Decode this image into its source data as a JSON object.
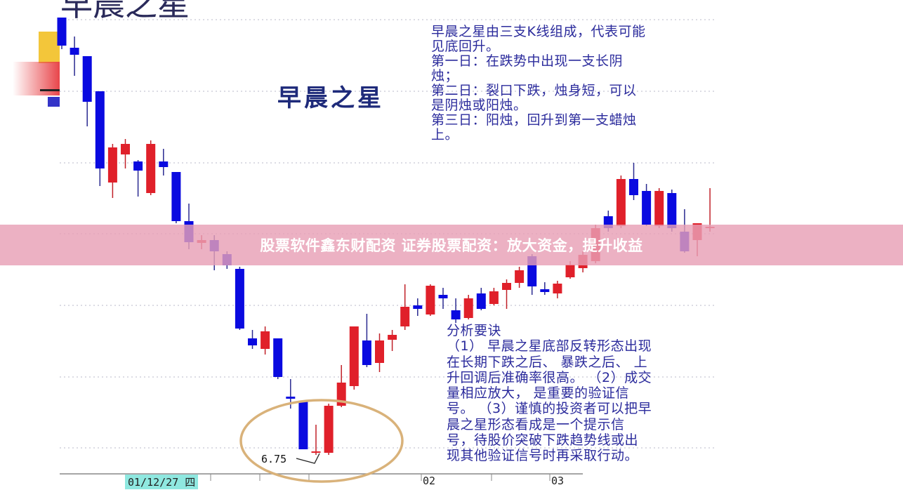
{
  "title": "早晨之星",
  "pattern_label": "早晨之星",
  "banner": "股票软件鑫东财配资 证券股票配资：放大资金，提升收益",
  "description_lines": [
    "早晨之星由三支K线组成，代表可能",
    "见底回升。",
    "第一日：在跌势中出现一支长阴",
    "烛；",
    "第二日：裂口下跌，烛身短，可以",
    "是阴烛或阳烛。",
    "第三日：阳烛，回升到第一支蜡烛",
    "上。"
  ],
  "analysis_lines": [
    "分析要诀",
    "（1） 早晨之星底部反转形态出现",
    "在长期下跌之后、 暴跌之后、 上",
    "升回调后准确率很高。 （2）成交",
    "量相应放大， 是重要的验证信",
    "号。 （3）谨慎的投资者可以把早",
    "晨之星形态看成是一个提示信",
    "号，待股价突破下跌趋势线或出",
    "现其他验证信号时再采取行动。"
  ],
  "colors": {
    "up": "#e0202a",
    "down": "#0a0ae0",
    "text": "#2b2b9c",
    "highlight_circle": "#d9b27a",
    "banner": "#e8a0b6",
    "date_highlight": "#8fe8e0"
  },
  "chart_data": {
    "type": "candlestick",
    "low_annotation": "6.75",
    "x_tick_labels": [
      "01/12/27 四",
      "02",
      "03"
    ],
    "grid": true,
    "candles": [
      {
        "o": 12.98,
        "c": 12.58,
        "h": 12.98,
        "l": 12.53
      },
      {
        "o": 12.55,
        "c": 12.45,
        "h": 12.71,
        "l": 12.15
      },
      {
        "o": 12.43,
        "c": 11.78,
        "h": 12.43,
        "l": 11.43
      },
      {
        "o": 11.93,
        "c": 10.83,
        "h": 11.93,
        "l": 10.58
      },
      {
        "o": 10.63,
        "c": 11.13,
        "h": 11.18,
        "l": 10.41
      },
      {
        "o": 11.03,
        "c": 11.18,
        "h": 11.25,
        "l": 10.83
      },
      {
        "o": 10.93,
        "c": 10.8,
        "h": 10.95,
        "l": 10.43
      },
      {
        "o": 10.48,
        "c": 11.18,
        "h": 11.23,
        "l": 10.45
      },
      {
        "o": 10.93,
        "c": 10.85,
        "h": 11.11,
        "l": 10.73
      },
      {
        "o": 10.78,
        "c": 10.08,
        "h": 10.78,
        "l": 10.05
      },
      {
        "o": 10.08,
        "c": 9.78,
        "h": 10.33,
        "l": 9.68
      },
      {
        "o": 9.77,
        "c": 9.81,
        "h": 9.88,
        "l": 9.68
      },
      {
        "o": 9.81,
        "c": 9.65,
        "h": 9.88,
        "l": 9.38
      },
      {
        "o": 9.61,
        "c": 9.45,
        "h": 9.65,
        "l": 9.4
      },
      {
        "o": 9.4,
        "c": 8.55,
        "h": 9.43,
        "l": 8.53
      },
      {
        "o": 8.41,
        "c": 8.31,
        "h": 8.53,
        "l": 8.26
      },
      {
        "o": 8.26,
        "c": 8.51,
        "h": 8.58,
        "l": 8.18
      },
      {
        "o": 8.41,
        "c": 7.86,
        "h": 8.41,
        "l": 7.83
      },
      {
        "o": 7.58,
        "c": 7.55,
        "h": 7.83,
        "l": 7.41
      },
      {
        "o": 7.51,
        "c": 6.83,
        "h": 7.53,
        "l": 6.83
      },
      {
        "o": 6.78,
        "c": 6.8,
        "h": 7.18,
        "l": 6.75
      },
      {
        "o": 6.78,
        "c": 7.45,
        "h": 7.48,
        "l": 6.75
      },
      {
        "o": 7.45,
        "c": 7.78,
        "h": 8.03,
        "l": 7.43
      },
      {
        "o": 7.73,
        "c": 8.58,
        "h": 8.58,
        "l": 7.68
      },
      {
        "o": 8.38,
        "c": 8.03,
        "h": 8.76,
        "l": 8.0
      },
      {
        "o": 8.06,
        "c": 8.38,
        "h": 8.48,
        "l": 7.93
      },
      {
        "o": 8.39,
        "c": 8.46,
        "h": 8.53,
        "l": 8.23
      },
      {
        "o": 8.58,
        "c": 8.86,
        "h": 9.18,
        "l": 8.53
      },
      {
        "o": 8.88,
        "c": 8.83,
        "h": 8.98,
        "l": 8.73
      },
      {
        "o": 8.75,
        "c": 9.16,
        "h": 9.18,
        "l": 8.73
      },
      {
        "o": 9.03,
        "c": 8.98,
        "h": 9.13,
        "l": 8.83
      },
      {
        "o": 8.81,
        "c": 8.68,
        "h": 8.98,
        "l": 8.63
      },
      {
        "o": 8.7,
        "c": 8.98,
        "h": 9.03,
        "l": 8.68
      },
      {
        "o": 9.05,
        "c": 8.83,
        "h": 9.13,
        "l": 8.81
      },
      {
        "o": 8.9,
        "c": 9.08,
        "h": 9.13,
        "l": 8.88
      },
      {
        "o": 9.1,
        "c": 9.2,
        "h": 9.25,
        "l": 8.83
      },
      {
        "o": 9.2,
        "c": 9.38,
        "h": 9.43,
        "l": 9.13
      },
      {
        "o": 9.58,
        "c": 9.15,
        "h": 9.61,
        "l": 9.03
      },
      {
        "o": 9.11,
        "c": 9.07,
        "h": 9.21,
        "l": 9.03
      },
      {
        "o": 9.05,
        "c": 9.19,
        "h": 9.23,
        "l": 8.98
      },
      {
        "o": 9.28,
        "c": 9.46,
        "h": 9.51,
        "l": 9.26
      },
      {
        "o": 9.41,
        "c": 9.6,
        "h": 9.65,
        "l": 9.35
      },
      {
        "o": 9.51,
        "c": 9.98,
        "h": 10.03,
        "l": 9.48
      },
      {
        "o": 10.15,
        "c": 9.98,
        "h": 10.23,
        "l": 9.93
      },
      {
        "o": 10.01,
        "c": 10.68,
        "h": 10.73,
        "l": 9.98
      },
      {
        "o": 10.68,
        "c": 10.45,
        "h": 10.91,
        "l": 10.38
      },
      {
        "o": 10.51,
        "c": 10.03,
        "h": 10.61,
        "l": 10.01
      },
      {
        "o": 10.01,
        "c": 10.51,
        "h": 10.55,
        "l": 9.98
      },
      {
        "o": 10.48,
        "c": 9.98,
        "h": 10.53,
        "l": 9.93
      },
      {
        "o": 9.93,
        "c": 9.65,
        "h": 10.25,
        "l": 9.63
      },
      {
        "o": 9.81,
        "c": 10.05,
        "h": 10.05,
        "l": 9.58
      },
      {
        "o": 9.98,
        "c": 10.0,
        "h": 10.55,
        "l": 9.93
      }
    ]
  }
}
